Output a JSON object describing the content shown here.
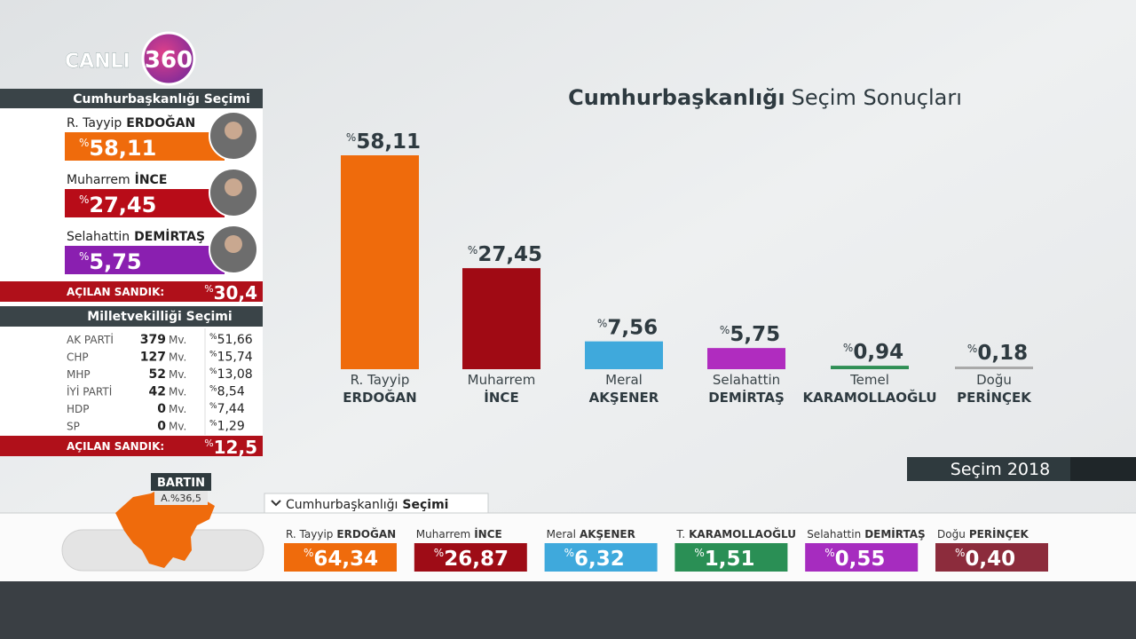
{
  "logo": {
    "text": "CANLI",
    "badge": "360"
  },
  "chart_data": {
    "type": "bar",
    "title": {
      "bold": "Cumhurbaşkanlığı",
      "regular": "Seçim Sonuçları"
    },
    "categories": [
      {
        "first": "R. Tayyip",
        "last": "ERDOĞAN"
      },
      {
        "first": "Muharrem",
        "last": "İNCE"
      },
      {
        "first": "Meral",
        "last": "AKŞENER"
      },
      {
        "first": "Selahattin",
        "last": "DEMİRTAŞ"
      },
      {
        "first": "Temel",
        "last": "KARAMOLLAOĞLU"
      },
      {
        "first": "Doğu",
        "last": "PERİNÇEK"
      }
    ],
    "values": [
      58.11,
      27.45,
      7.56,
      5.75,
      0.94,
      0.18
    ],
    "value_labels": [
      "58,11",
      "27,45",
      "7,56",
      "5,75",
      "0,94",
      "0,18"
    ],
    "value_prefix": "%",
    "colors": [
      "#ef6b0c",
      "#a00a14",
      "#3fa9dc",
      "#b02cbf",
      "#2f8f55",
      "#a9a9a9"
    ]
  },
  "presidential_panel": {
    "title": "Cumhurbaşkanlığı Seçimi",
    "prefix": "%",
    "candidates": [
      {
        "first": "R. Tayyip",
        "last": "ERDOĞAN",
        "value": "58,11",
        "color": "#ef6b0c"
      },
      {
        "first": "Muharrem",
        "last": "İNCE",
        "value": "27,45",
        "color": "#b80c18"
      },
      {
        "first": "Selahattin",
        "last": "DEMİRTAŞ",
        "value": "5,75",
        "color": "#8a1fb0"
      }
    ],
    "opened_label": "AÇILAN SANDIK:",
    "opened_value": "30,4"
  },
  "parliament_panel": {
    "title": "Milletvekilliği Seçimi",
    "unit": "Mv.",
    "prefix": "%",
    "rows": [
      {
        "party": "AK PARTİ",
        "seats": 379,
        "share": "51,66"
      },
      {
        "party": "CHP",
        "seats": 127,
        "share": "15,74"
      },
      {
        "party": "MHP",
        "seats": 52,
        "share": "13,08"
      },
      {
        "party": "İYİ PARTİ",
        "seats": 42,
        "share": "8,54"
      },
      {
        "party": "HDP",
        "seats": 0,
        "share": "7,44"
      },
      {
        "party": "SP",
        "seats": 0,
        "share": "1,29"
      }
    ],
    "opened_label": "AÇILAN SANDIK:",
    "opened_value": "12,5"
  },
  "map": {
    "region": "BARTIN",
    "opened": "A.%36,5"
  },
  "election_label": "Seçim 2018",
  "ticker": {
    "tab": {
      "regular": "Cumhurbaşkanlığı",
      "bold": "Seçimi"
    },
    "prefix": "%",
    "candidates": [
      {
        "first": "R. Tayyip",
        "last": "ERDOĞAN",
        "value": "64,34",
        "color": "#ef6b0c"
      },
      {
        "first": "Muharrem",
        "last": "İNCE",
        "value": "26,87",
        "color": "#9e0c16"
      },
      {
        "first": "Meral",
        "last": "AKŞENER",
        "value": "6,32",
        "color": "#3fa9dc"
      },
      {
        "first": "T.",
        "last": "KARAMOLLAOĞLU",
        "value": "1,51",
        "color": "#2a8f55"
      },
      {
        "first": "Selahattin",
        "last": "DEMİRTAŞ",
        "value": "0,55",
        "color": "#a62cbf"
      },
      {
        "first": "Doğu",
        "last": "PERİNÇEK",
        "value": "0,40",
        "color": "#8c2c3c"
      }
    ]
  }
}
